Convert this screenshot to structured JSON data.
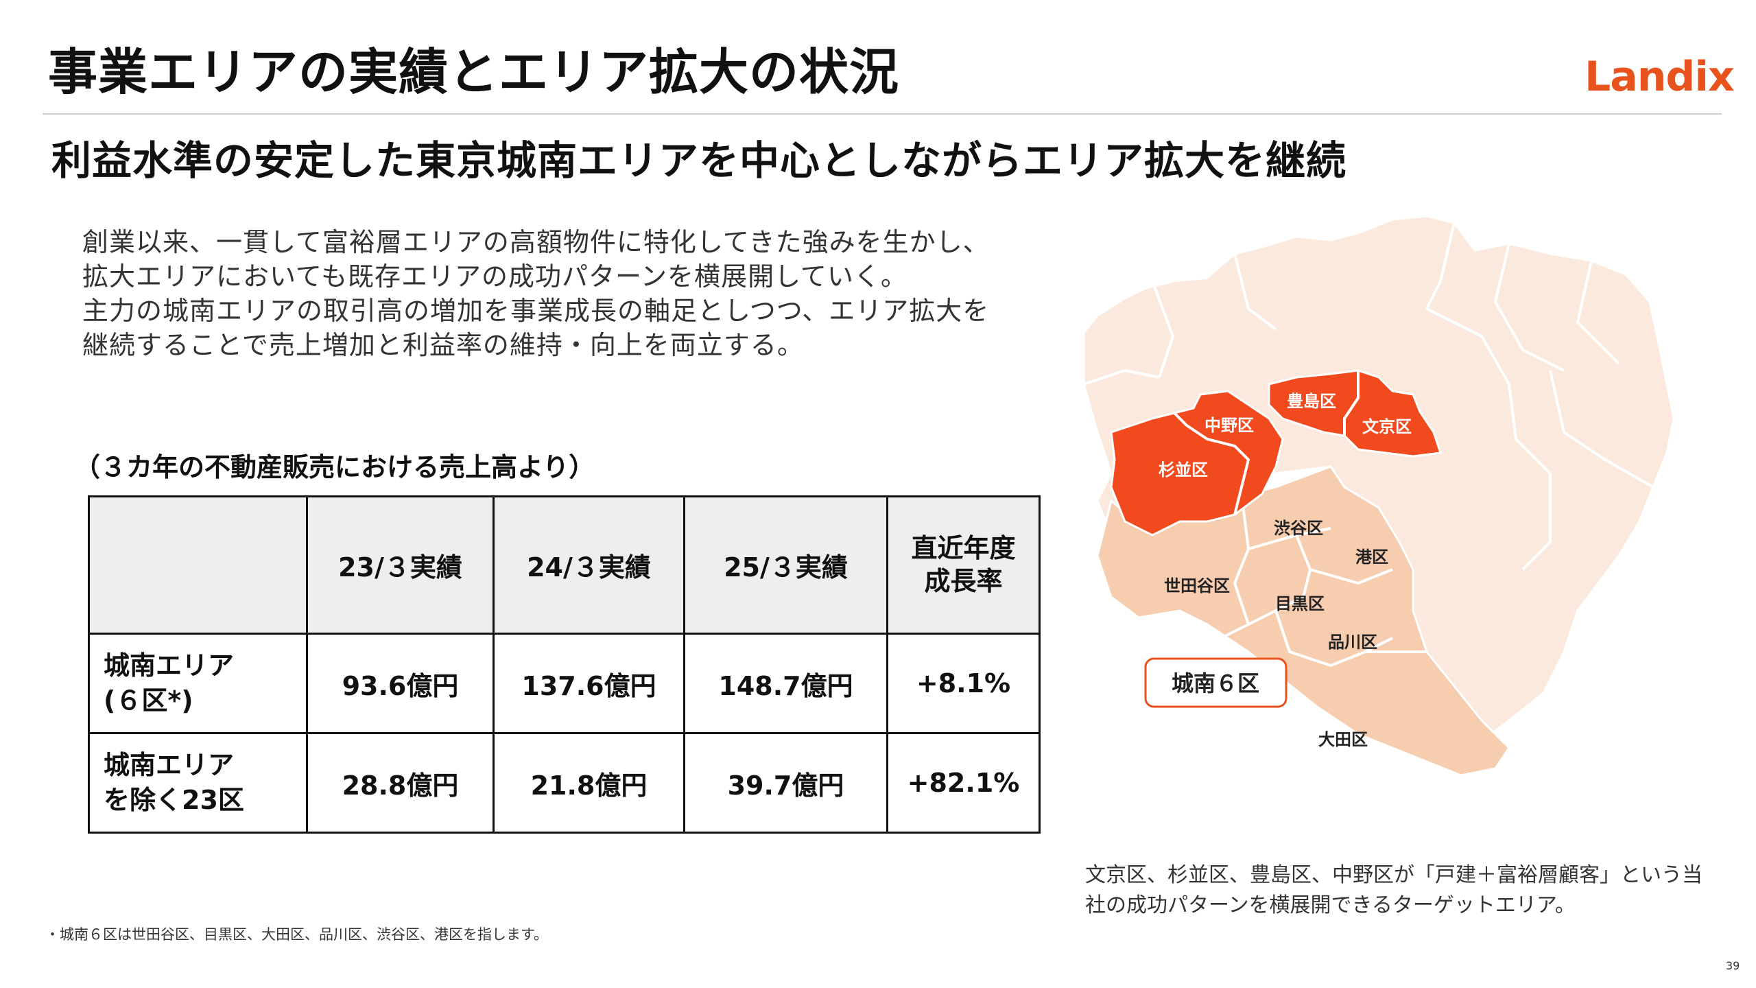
{
  "slide": {
    "title": "事業エリアの実績とエリア拡大の状況",
    "subtitle": "利益水準の安定した東京城南エリアを中心としながらエリア拡大を継続",
    "logo": "Landix",
    "page_number": "39"
  },
  "body": {
    "paragraph_1": "創業以来、一貫して富裕層エリアの高額物件に特化してきた強みを生かし、拡大エリアにおいても既存エリアの成功パターンを横展開していく。",
    "paragraph_2": "主力の城南エリアの取引高の増加を事業成長の軸足としつつ、エリア拡大を継続することで売上増加と利益率の維持・向上を両立する。"
  },
  "table": {
    "caption": "（３カ年の不動産販売における売上高より）",
    "headers": [
      "",
      "23/３実績",
      "24/３実績",
      "25/３実績",
      "直近年度\n成長率"
    ],
    "rows": [
      {
        "label": "城南エリア\n(６区*)",
        "values": [
          "93.6億円",
          "137.6億円",
          "148.7億円",
          "+8.1%"
        ]
      },
      {
        "label": "城南エリア\nを除く23区",
        "values": [
          "28.8億円",
          "21.8億円",
          "39.7億円",
          "+82.1%"
        ]
      }
    ]
  },
  "footnote": "・城南６区は世田谷区、目黒区、大田区、品川区、渋谷区、港区を指します。",
  "map": {
    "highlight_color": "#f14a1e",
    "jonan_color": "#f7cdb0",
    "other_color": "#fbe9dd",
    "legend_box": "城南６区",
    "wards": {
      "toshima": "豊島区",
      "nakano": "中野区",
      "bunkyo": "文京区",
      "suginami": "杉並区",
      "shibuya": "渋谷区",
      "minato": "港区",
      "setagaya": "世田谷区",
      "meguro": "目黒区",
      "shinagawa": "品川区",
      "ota": "大田区"
    },
    "caption": "文京区、杉並区、豊島区、中野区が「戸建＋富裕層顧客」という当社の成功パターンを横展開できるターゲットエリア。"
  }
}
